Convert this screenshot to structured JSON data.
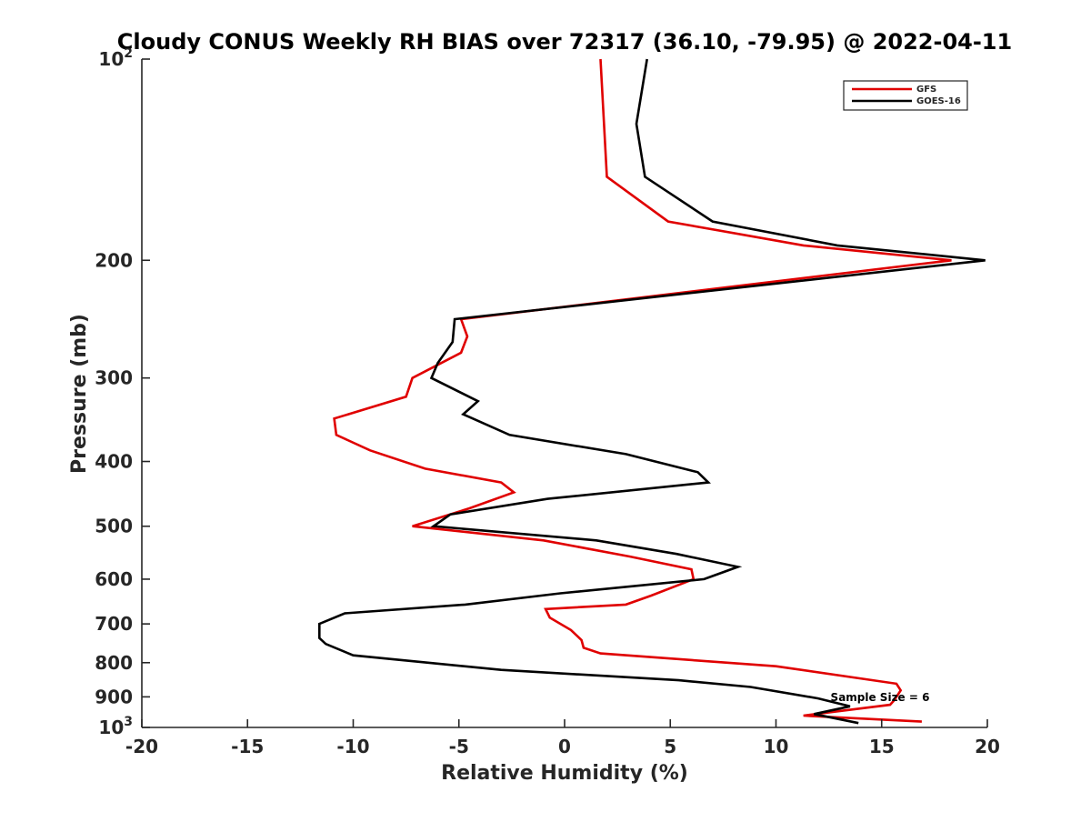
{
  "chart_data": {
    "type": "line",
    "title": "Cloudy CONUS Weekly RH BIAS over 72317 (36.10, -79.95) @ 2022-04-11",
    "xlabel": "Relative Humidity (%)",
    "ylabel": "Pressure (mb)",
    "xlim": [
      -20,
      20
    ],
    "ylim": [
      1000,
      100
    ],
    "y_scale": "log",
    "y_reversed": true,
    "x_ticks": [
      "-20",
      "-15",
      "-10",
      "-5",
      "0",
      "5",
      "10",
      "15",
      "20"
    ],
    "y_ticks": [
      {
        "value": 100,
        "base": "10",
        "exp": "2"
      },
      {
        "value": 200,
        "base": "200",
        "exp": ""
      },
      {
        "value": 300,
        "base": "300",
        "exp": ""
      },
      {
        "value": 400,
        "base": "400",
        "exp": ""
      },
      {
        "value": 500,
        "base": "500",
        "exp": ""
      },
      {
        "value": 600,
        "base": "600",
        "exp": ""
      },
      {
        "value": 700,
        "base": "700",
        "exp": ""
      },
      {
        "value": 800,
        "base": "800",
        "exp": ""
      },
      {
        "value": 900,
        "base": "900",
        "exp": ""
      },
      {
        "value": 1000,
        "base": "10",
        "exp": "3"
      }
    ],
    "grid": false,
    "legend_position": "top-right",
    "annotation": "Sample Size = 6",
    "series": [
      {
        "name": "GFS",
        "color": "#e00000",
        "points": [
          [
            1.7,
            100
          ],
          [
            2.0,
            150
          ],
          [
            4.9,
            175
          ],
          [
            11.3,
            190
          ],
          [
            18.3,
            200
          ],
          [
            -4.9,
            245
          ],
          [
            -4.6,
            260
          ],
          [
            -4.9,
            275
          ],
          [
            -7.2,
            300
          ],
          [
            -7.5,
            320
          ],
          [
            -10.9,
            345
          ],
          [
            -10.8,
            365
          ],
          [
            -9.2,
            385
          ],
          [
            -6.6,
            410
          ],
          [
            -3.0,
            430
          ],
          [
            -2.4,
            445
          ],
          [
            -4.5,
            470
          ],
          [
            -7.2,
            500
          ],
          [
            -1.0,
            525
          ],
          [
            3.1,
            555
          ],
          [
            6.0,
            580
          ],
          [
            6.1,
            600
          ],
          [
            4.1,
            635
          ],
          [
            2.9,
            655
          ],
          [
            -0.9,
            665
          ],
          [
            -0.7,
            685
          ],
          [
            0.3,
            715
          ],
          [
            0.8,
            740
          ],
          [
            0.9,
            760
          ],
          [
            1.7,
            775
          ],
          [
            10.0,
            810
          ],
          [
            15.7,
            860
          ],
          [
            15.9,
            880
          ],
          [
            15.6,
            910
          ],
          [
            15.4,
            925
          ],
          [
            11.3,
            960
          ],
          [
            16.9,
            980
          ]
        ]
      },
      {
        "name": "GOES-16",
        "color": "#000000",
        "points": [
          [
            3.9,
            100
          ],
          [
            3.4,
            125
          ],
          [
            3.8,
            150
          ],
          [
            7.0,
            175
          ],
          [
            12.9,
            190
          ],
          [
            19.9,
            200
          ],
          [
            -5.2,
            245
          ],
          [
            -5.3,
            265
          ],
          [
            -6.0,
            285
          ],
          [
            -6.3,
            300
          ],
          [
            -4.1,
            325
          ],
          [
            -4.8,
            340
          ],
          [
            -2.6,
            365
          ],
          [
            2.9,
            390
          ],
          [
            6.3,
            415
          ],
          [
            6.8,
            430
          ],
          [
            -0.8,
            455
          ],
          [
            -5.4,
            480
          ],
          [
            -6.2,
            500
          ],
          [
            1.5,
            525
          ],
          [
            5.3,
            550
          ],
          [
            8.2,
            575
          ],
          [
            6.6,
            600
          ],
          [
            -0.2,
            630
          ],
          [
            -4.7,
            655
          ],
          [
            -10.4,
            675
          ],
          [
            -11.6,
            700
          ],
          [
            -11.6,
            735
          ],
          [
            -11.3,
            750
          ],
          [
            -10.0,
            780
          ],
          [
            -3.0,
            820
          ],
          [
            5.4,
            850
          ],
          [
            8.8,
            870
          ],
          [
            12.0,
            905
          ],
          [
            13.5,
            930
          ],
          [
            11.8,
            955
          ],
          [
            13.9,
            985
          ]
        ]
      }
    ]
  }
}
